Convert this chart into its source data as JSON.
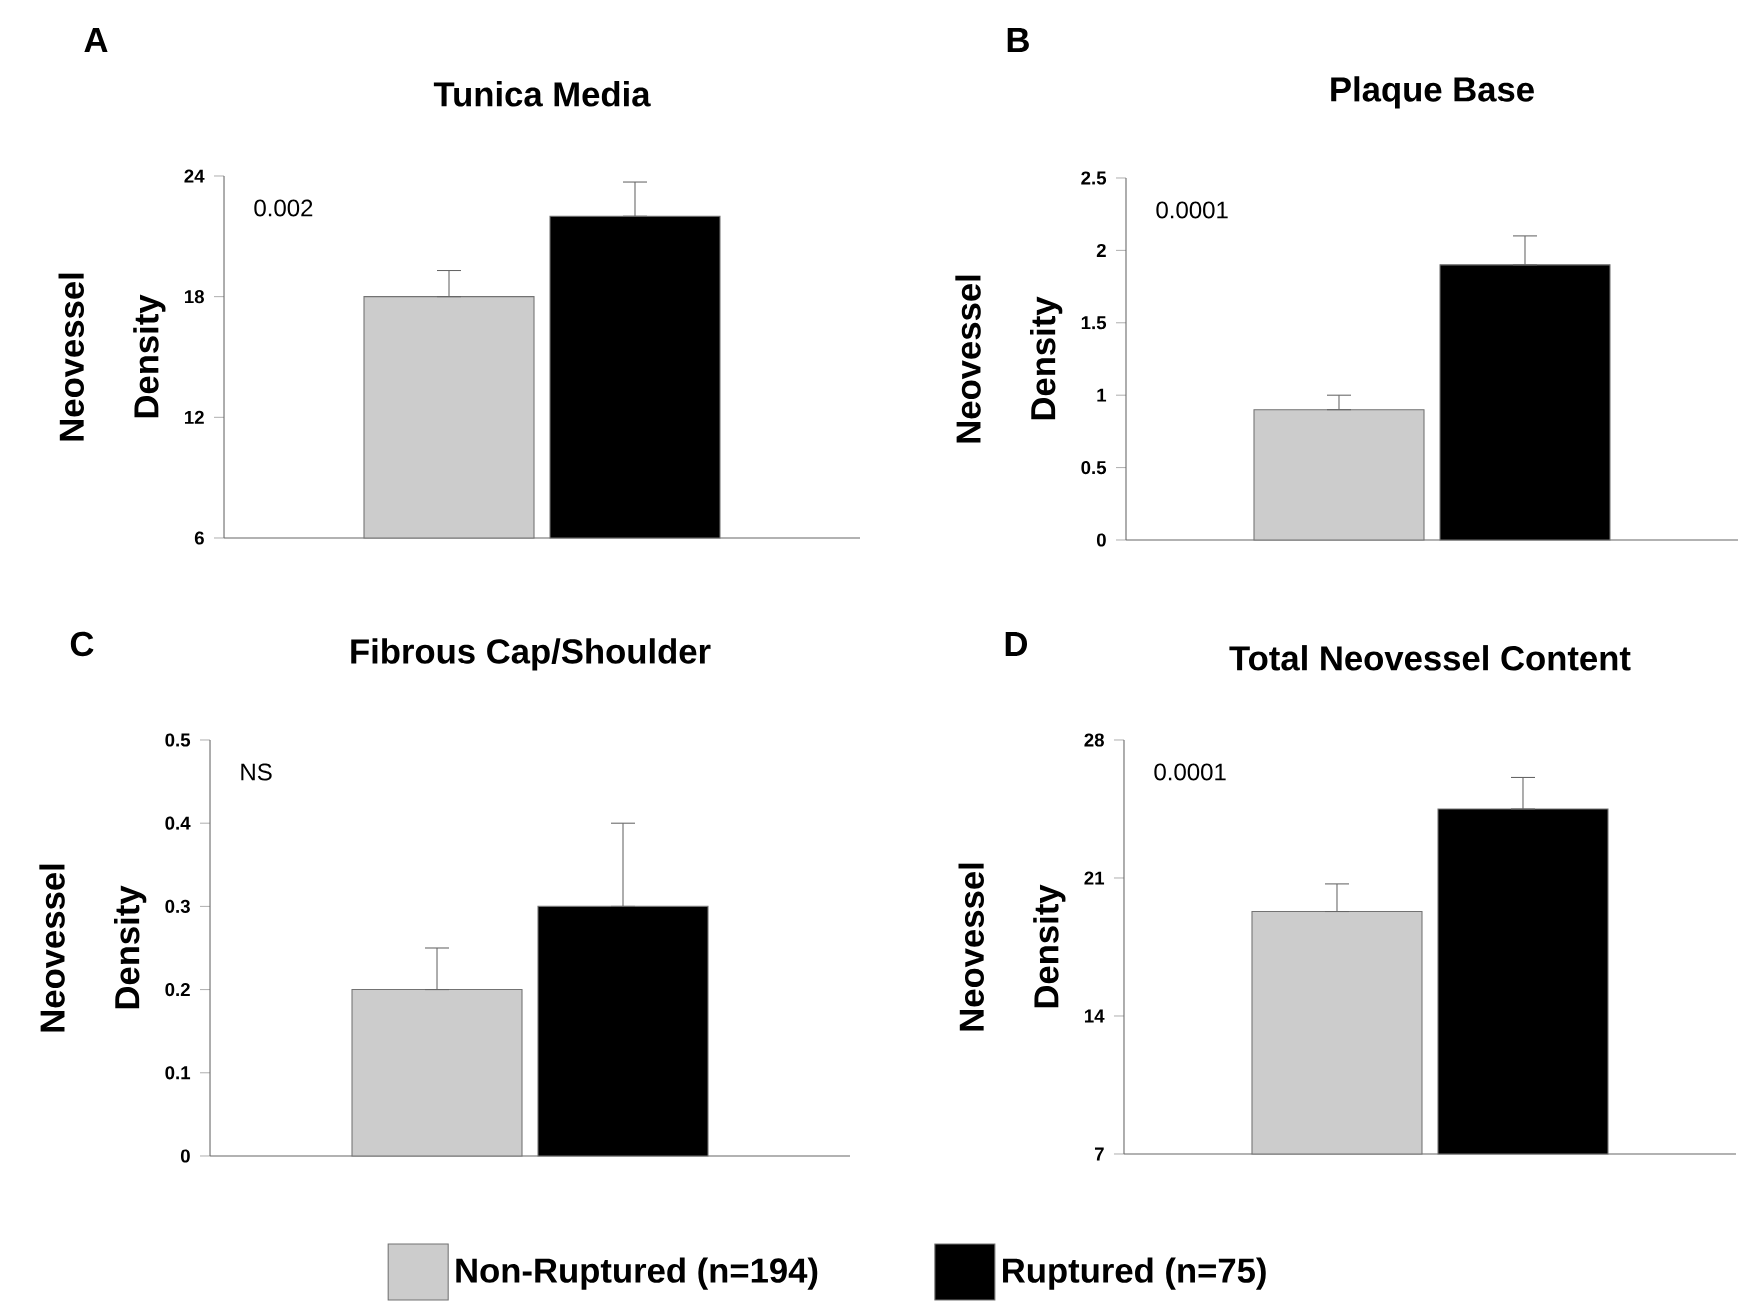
{
  "chart_data": [
    {
      "type": "bar",
      "title": "Tunica Media",
      "ylabel": "Neovessel Density",
      "categories": [
        null
      ],
      "annotations": [
        "A",
        "0.002"
      ],
      "ylim": [
        6,
        24
      ],
      "yticks": [
        6,
        12,
        18,
        24
      ],
      "tick_labels": "y",
      "series": [
        {
          "color": "#cccccc",
          "values": [
            18
          ],
          "errors": [
            [
              18,
              19.3
            ]
          ]
        },
        {
          "color": "#000000",
          "values": [
            22
          ],
          "errors": [
            [
              22,
              23.7
            ]
          ]
        }
      ]
    },
    {
      "type": "bar",
      "title": "Plaque Base",
      "ylabel": "Neovessel Density",
      "categories": [
        null
      ],
      "annotations": [
        "B",
        "0.0001"
      ],
      "ylim": [
        0,
        2.5
      ],
      "yticks": [
        0,
        0.5,
        1,
        1.5,
        2,
        2.5
      ],
      "tick_labels": "y",
      "series": [
        {
          "color": "#cccccc",
          "values": [
            0.9
          ],
          "errors": [
            [
              0.9,
              1.0
            ]
          ]
        },
        {
          "color": "#000000",
          "values": [
            1.9
          ],
          "errors": [
            [
              1.9,
              2.1
            ]
          ]
        }
      ]
    },
    {
      "type": "bar",
      "title": "Fibrous Cap/Shoulder",
      "ylabel": "Neovessel Density",
      "categories": [
        null
      ],
      "annotations": [
        "C",
        "NS"
      ],
      "ylim": [
        0,
        0.5
      ],
      "yticks": [
        0,
        0.1,
        0.2,
        0.3,
        0.4,
        0.5
      ],
      "tick_labels": "y",
      "series": [
        {
          "color": "#cccccc",
          "values": [
            0.2
          ],
          "errors": [
            [
              0.2,
              0.25
            ]
          ]
        },
        {
          "color": "#000000",
          "values": [
            0.3
          ],
          "errors": [
            [
              0.3,
              0.4
            ]
          ]
        }
      ]
    },
    {
      "type": "bar",
      "title": "Total Neovessel Content",
      "ylabel": "Neovessel Density",
      "categories": [
        null
      ],
      "annotations": [
        "D",
        "0.0001"
      ],
      "ylim": [
        7,
        28
      ],
      "yticks": [
        7,
        14,
        21,
        28
      ],
      "tick_labels": "y",
      "legend": "bottom",
      "series": [
        {
          "name": "Non-Ruptured (n=194)",
          "color": "#cccccc",
          "values": [
            19.3
          ],
          "errors": [
            [
              19.3,
              20.7
            ]
          ]
        },
        {
          "name": "Ruptured (n=75)",
          "color": "#000000",
          "values": [
            24.5
          ],
          "errors": [
            [
              24.5,
              26.1
            ]
          ]
        }
      ]
    }
  ]
}
